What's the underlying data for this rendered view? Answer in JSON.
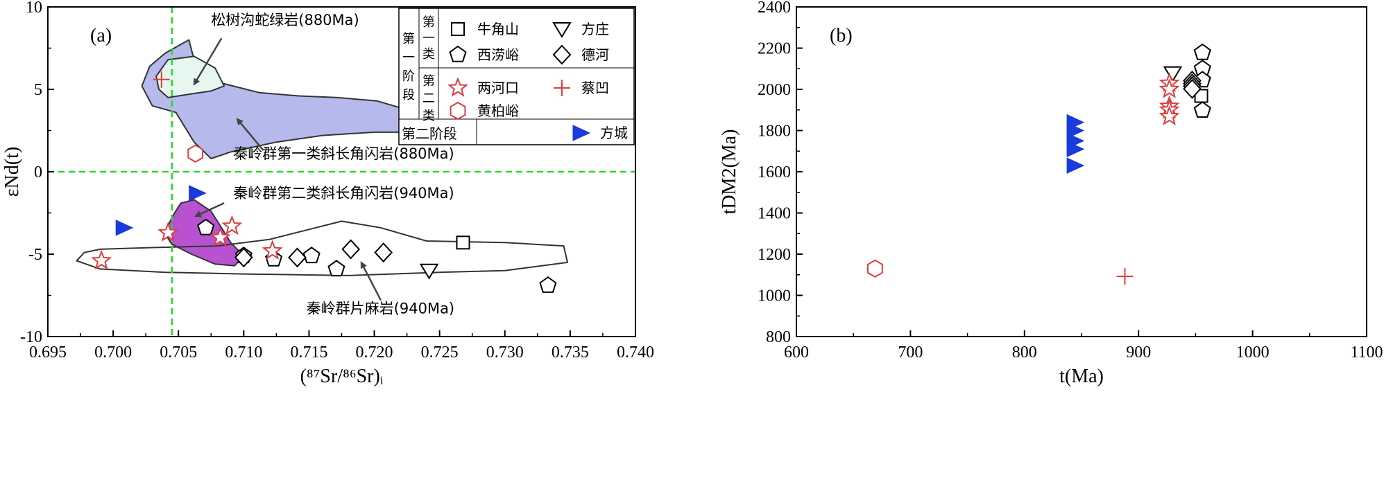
{
  "chart_data": [
    {
      "type": "scatter",
      "panel_label": "(a)",
      "xlabel": "(⁸⁷Sr/⁸⁶Sr)ᵢ",
      "ylabel": "εNd(t)",
      "xlim": [
        0.695,
        0.74
      ],
      "ylim": [
        -10,
        10
      ],
      "xticks": [
        "0.695",
        "0.700",
        "0.705",
        "0.710",
        "0.715",
        "0.720",
        "0.725",
        "0.730",
        "0.735",
        "0.740"
      ],
      "yticks": [
        "-10",
        "-5",
        "0",
        "5",
        "10"
      ],
      "reference_lines": [
        {
          "axis": "x",
          "value": 0.7045,
          "color": "#22dd22",
          "style": "dashed"
        },
        {
          "axis": "y",
          "value": 0,
          "color": "#22dd22",
          "style": "dashed"
        }
      ],
      "fields": [
        {
          "name": "秦岭群第一类斜长角闪岩",
          "label": "秦岭群第一类斜长角闪岩(880Ma)",
          "fill": "#b6b9ec",
          "outline": [
            [
              0.704,
              7.2
            ],
            [
              0.7058,
              8.0
            ],
            [
              0.7062,
              6.8
            ],
            [
              0.7082,
              5.4
            ],
            [
              0.7112,
              4.8
            ],
            [
              0.7142,
              4.6
            ],
            [
              0.7172,
              4.5
            ],
            [
              0.7202,
              4.3
            ],
            [
              0.7232,
              3.6
            ],
            [
              0.7252,
              2.8
            ],
            [
              0.724,
              2.4
            ],
            [
              0.72,
              2.4
            ],
            [
              0.716,
              2.2
            ],
            [
              0.7125,
              1.8
            ],
            [
              0.709,
              1.2
            ],
            [
              0.7075,
              0.8
            ],
            [
              0.7062,
              1.8
            ],
            [
              0.7048,
              3.6
            ],
            [
              0.703,
              4.0
            ],
            [
              0.7022,
              5.2
            ],
            [
              0.7028,
              6.4
            ]
          ]
        },
        {
          "name": "松树沟蛇绿岩",
          "label": "松树沟蛇绿岩(880Ma)",
          "fill": "#e6f7ef",
          "outline": [
            [
              0.7033,
              5.8
            ],
            [
              0.7042,
              6.8
            ],
            [
              0.7062,
              7.0
            ],
            [
              0.7078,
              6.3
            ],
            [
              0.7085,
              5.2
            ],
            [
              0.7075,
              4.9
            ],
            [
              0.7058,
              4.7
            ],
            [
              0.7042,
              4.5
            ],
            [
              0.7035,
              5.0
            ]
          ]
        },
        {
          "name": "秦岭群第二类斜长角闪岩",
          "label": "秦岭群第二类斜长角闪岩(940Ma)",
          "fill": "#b852d0",
          "outline": [
            [
              0.7052,
              -1.9
            ],
            [
              0.7062,
              -1.7
            ],
            [
              0.7075,
              -2.4
            ],
            [
              0.7083,
              -3.4
            ],
            [
              0.709,
              -4.3
            ],
            [
              0.71,
              -5.1
            ],
            [
              0.7093,
              -5.7
            ],
            [
              0.7078,
              -5.6
            ],
            [
              0.706,
              -5.0
            ],
            [
              0.7045,
              -4.4
            ],
            [
              0.704,
              -3.8
            ],
            [
              0.7043,
              -3.1
            ],
            [
              0.7047,
              -2.5
            ]
          ]
        },
        {
          "name": "秦岭群片麻岩",
          "label": "秦岭群片麻岩(940Ma)",
          "fill": "none",
          "outline": [
            [
              0.699,
              -4.7
            ],
            [
              0.703,
              -4.6
            ],
            [
              0.708,
              -4.5
            ],
            [
              0.712,
              -4.1
            ],
            [
              0.7145,
              -3.6
            ],
            [
              0.7175,
              -3.0
            ],
            [
              0.7205,
              -3.4
            ],
            [
              0.724,
              -4.2
            ],
            [
              0.73,
              -4.3
            ],
            [
              0.7345,
              -4.5
            ],
            [
              0.7348,
              -5.5
            ],
            [
              0.73,
              -6.0
            ],
            [
              0.725,
              -6.1
            ],
            [
              0.718,
              -6.3
            ],
            [
              0.71,
              -6.2
            ],
            [
              0.704,
              -6.1
            ],
            [
              0.699,
              -5.9
            ],
            [
              0.6972,
              -5.4
            ],
            [
              0.6978,
              -4.9
            ]
          ]
        }
      ],
      "annotations": [
        {
          "text": "松树沟蛇绿岩(880Ma)",
          "label_at": [
            0.7075,
            8.9
          ],
          "arrow_from": [
            0.7083,
            8.1
          ],
          "arrow_to": [
            0.7062,
            5.3
          ]
        },
        {
          "text": "秦岭群第一类斜长角闪岩(880Ma)",
          "label_at": [
            0.7092,
            0.8
          ],
          "arrow_from": [
            0.7115,
            1.3
          ],
          "arrow_to": [
            0.7095,
            3.2
          ]
        },
        {
          "text": "秦岭群第二类斜长角闪岩(940Ma)",
          "label_at": [
            0.7092,
            -1.6
          ],
          "arrow_from": [
            0.7085,
            -1.9
          ],
          "arrow_to": [
            0.7063,
            -2.7
          ]
        },
        {
          "text": "秦岭群片麻岩(940Ma)",
          "label_at": [
            0.7148,
            -8.6
          ],
          "arrow_from": [
            0.7205,
            -7.8
          ],
          "arrow_to": [
            0.719,
            -5.5
          ]
        }
      ],
      "series": [
        {
          "name": "牛角山",
          "marker": "square",
          "color": "#000000",
          "points": [
            [
              0.7268,
              -4.3
            ]
          ]
        },
        {
          "name": "方庄",
          "marker": "triangle-down",
          "color": "#000000",
          "points": [
            [
              0.7242,
              -6.0
            ]
          ]
        },
        {
          "name": "西涝峪",
          "marker": "pentagon",
          "color": "#000000",
          "points": [
            [
              0.7071,
              -3.4
            ],
            [
              0.71,
              -5.1
            ],
            [
              0.7123,
              -5.3
            ],
            [
              0.7152,
              -5.1
            ],
            [
              0.7171,
              -5.9
            ],
            [
              0.7333,
              -6.9
            ]
          ]
        },
        {
          "name": "德河",
          "marker": "diamond",
          "color": "#000000",
          "points": [
            [
              0.71,
              -5.2
            ],
            [
              0.7141,
              -5.2
            ],
            [
              0.7182,
              -4.7
            ],
            [
              0.7207,
              -4.9
            ]
          ]
        },
        {
          "name": "两河口",
          "marker": "star",
          "color": "#e03c3c",
          "points": [
            [
              0.6991,
              -5.4
            ],
            [
              0.7042,
              -3.7
            ],
            [
              0.7082,
              -4.0
            ],
            [
              0.7091,
              -3.3
            ],
            [
              0.7122,
              -4.8
            ]
          ]
        },
        {
          "name": "蔡凹",
          "marker": "plus",
          "color": "#e03c3c",
          "points": [
            [
              0.7037,
              5.6
            ]
          ]
        },
        {
          "name": "黄柏峪",
          "marker": "hexagon",
          "color": "#e03c3c",
          "points": [
            [
              0.7063,
              1.1
            ]
          ]
        },
        {
          "name": "方城",
          "marker": "triangle-right-filled",
          "color": "#1a3adb",
          "points": [
            [
              0.7008,
              -3.4
            ],
            [
              0.7064,
              -1.3
            ]
          ]
        }
      ]
    },
    {
      "type": "scatter",
      "panel_label": "(b)",
      "xlabel": "t(Ma)",
      "ylabel": "tDM2(Ma)",
      "xlim": [
        600,
        1100
      ],
      "ylim": [
        800,
        2400
      ],
      "xticks": [
        "600",
        "700",
        "800",
        "900",
        "1000",
        "1100"
      ],
      "yticks": [
        "800",
        "1000",
        "1200",
        "1400",
        "1600",
        "1800",
        "2000",
        "2200",
        "2400"
      ],
      "series": [
        {
          "name": "牛角山",
          "marker": "square",
          "color": "#000000",
          "points": [
            [
              955,
              1968
            ]
          ]
        },
        {
          "name": "方庄",
          "marker": "triangle-down",
          "color": "#000000",
          "points": [
            [
              930,
              2078
            ]
          ]
        },
        {
          "name": "西涝峪",
          "marker": "pentagon",
          "color": "#000000",
          "points": [
            [
              956,
              2178
            ],
            [
              956,
              2100
            ],
            [
              956,
              2045
            ],
            [
              956,
              1898
            ]
          ]
        },
        {
          "name": "德河",
          "marker": "diamond",
          "color": "#000000",
          "points": [
            [
              947,
              2042
            ],
            [
              947,
              2028
            ],
            [
              947,
              2015
            ],
            [
              947,
              2002
            ]
          ]
        },
        {
          "name": "两河口",
          "marker": "star",
          "color": "#e03c3c",
          "points": [
            [
              927,
              2030
            ],
            [
              927,
              2000
            ],
            [
              927,
              1918
            ],
            [
              927,
              1900
            ],
            [
              927,
              1868
            ]
          ]
        },
        {
          "name": "蔡凹",
          "marker": "plus",
          "color": "#e03c3c",
          "points": [
            [
              888,
              1092
            ]
          ]
        },
        {
          "name": "黄柏峪",
          "marker": "hexagon",
          "color": "#e03c3c",
          "points": [
            [
              669,
              1130
            ]
          ]
        },
        {
          "name": "方城",
          "marker": "triangle-right-filled",
          "color": "#1a3adb",
          "points": [
            [
              844,
              1840
            ],
            [
              844,
              1800
            ],
            [
              844,
              1750
            ],
            [
              844,
              1710
            ],
            [
              844,
              1630
            ]
          ]
        }
      ]
    }
  ],
  "legend": {
    "placement": "top-right",
    "stage1_label": "第一阶段",
    "group1_label": "第一类",
    "group2_label": "第二类",
    "stage2_label": "第二阶段",
    "entries": [
      {
        "series": "牛角山",
        "group": "第一类"
      },
      {
        "series": "方庄",
        "group": "第一类"
      },
      {
        "series": "西涝峪",
        "group": "第一类"
      },
      {
        "series": "德河",
        "group": "第一类"
      },
      {
        "series": "两河口",
        "group": "第二类"
      },
      {
        "series": "蔡凹",
        "group": "第二类"
      },
      {
        "series": "黄柏峪",
        "group": "第二类"
      },
      {
        "series": "方城",
        "group": "第二阶段"
      }
    ]
  }
}
